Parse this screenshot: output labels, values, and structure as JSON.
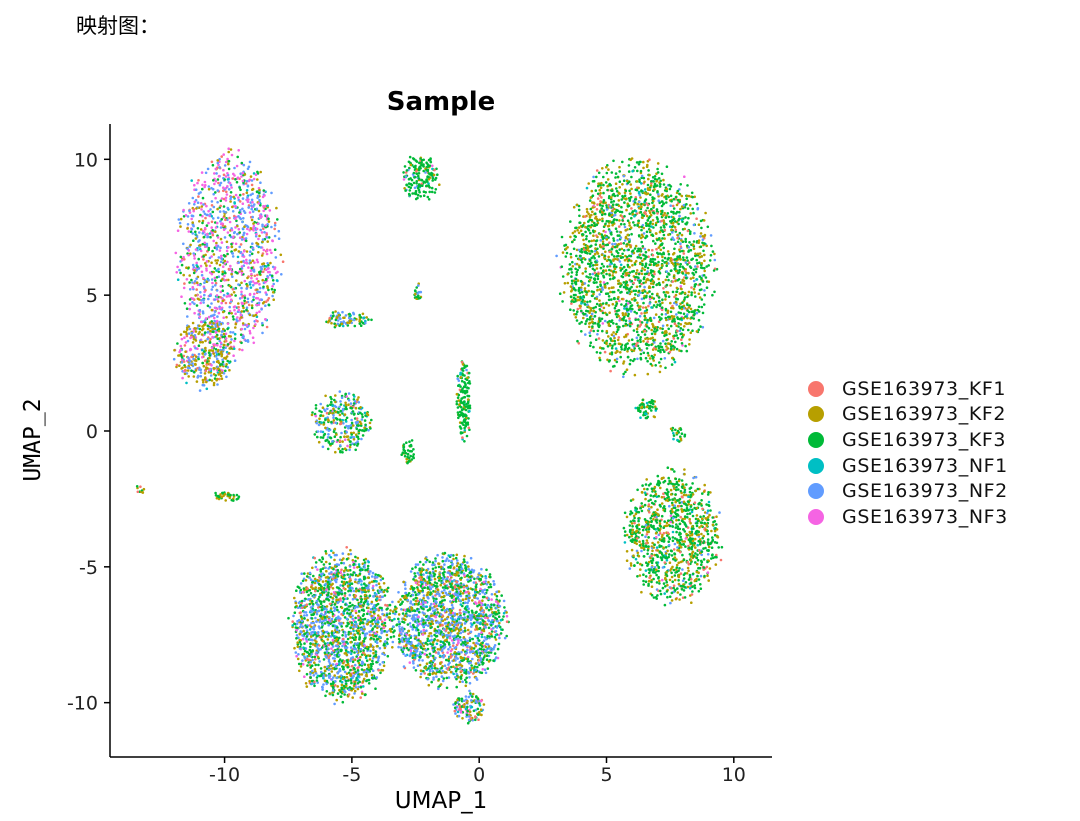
{
  "caption": "映射图：",
  "chart_data": {
    "type": "scatter",
    "title": "Sample",
    "xlabel": "UMAP_1",
    "ylabel": "UMAP_2",
    "xlim": [
      -14.5,
      11.5
    ],
    "ylim": [
      -12,
      11.3
    ],
    "xticks": [
      -10,
      -5,
      0,
      5,
      10
    ],
    "yticks": [
      -10,
      -5,
      0,
      5,
      10
    ],
    "grid": false,
    "legend_position": "right",
    "series": [
      {
        "name": "GSE163973_KF1",
        "color": "#F8766D"
      },
      {
        "name": "GSE163973_KF2",
        "color": "#B79F00"
      },
      {
        "name": "GSE163973_KF3",
        "color": "#00BA38"
      },
      {
        "name": "GSE163973_NF1",
        "color": "#00BFC4"
      },
      {
        "name": "GSE163973_NF2",
        "color": "#619CFF"
      },
      {
        "name": "GSE163973_NF3",
        "color": "#F564E3"
      }
    ],
    "clusters": [
      {
        "name": "left-upper",
        "cx": -9.8,
        "cy": 6.5,
        "rx": 1.9,
        "ry": 3.5,
        "n": 1200,
        "weights": [
          0.06,
          0.14,
          0.16,
          0.04,
          0.32,
          0.28
        ]
      },
      {
        "name": "left-lower",
        "cx": -10.8,
        "cy": 2.8,
        "rx": 1.1,
        "ry": 1.2,
        "n": 350,
        "weights": [
          0.06,
          0.4,
          0.14,
          0.04,
          0.26,
          0.1
        ]
      },
      {
        "name": "top-small",
        "cx": -2.3,
        "cy": 9.3,
        "rx": 0.7,
        "ry": 0.8,
        "n": 170,
        "weights": [
          0.04,
          0.08,
          0.72,
          0.04,
          0.1,
          0.02
        ]
      },
      {
        "name": "right-upper",
        "cx": 6.2,
        "cy": 6.0,
        "rx": 2.8,
        "ry": 3.7,
        "n": 2200,
        "weights": [
          0.06,
          0.3,
          0.55,
          0.02,
          0.06,
          0.01
        ]
      },
      {
        "name": "right-lower",
        "cx": 7.6,
        "cy": -3.9,
        "rx": 1.8,
        "ry": 2.3,
        "n": 1000,
        "weights": [
          0.05,
          0.28,
          0.6,
          0.02,
          0.04,
          0.01
        ]
      },
      {
        "name": "center-left",
        "cx": -5.4,
        "cy": 0.3,
        "rx": 1.1,
        "ry": 1.1,
        "n": 300,
        "weights": [
          0.04,
          0.22,
          0.44,
          0.04,
          0.22,
          0.04
        ]
      },
      {
        "name": "center-strip",
        "cx": -0.6,
        "cy": 1.1,
        "rx": 0.28,
        "ry": 1.4,
        "n": 160,
        "weights": [
          0.03,
          0.07,
          0.84,
          0.03,
          0.03,
          0.0
        ]
      },
      {
        "name": "bottom-left",
        "cx": -5.4,
        "cy": -7.2,
        "rx": 1.9,
        "ry": 2.6,
        "n": 1700,
        "weights": [
          0.05,
          0.18,
          0.38,
          0.05,
          0.3,
          0.04
        ]
      },
      {
        "name": "bottom-right",
        "cx": -1.2,
        "cy": -7.0,
        "rx": 2.1,
        "ry": 2.3,
        "n": 1700,
        "weights": [
          0.05,
          0.2,
          0.34,
          0.04,
          0.33,
          0.04
        ]
      },
      {
        "name": "bottom-tail",
        "cx": -0.4,
        "cy": -10.2,
        "rx": 0.6,
        "ry": 0.6,
        "n": 120,
        "weights": [
          0.1,
          0.2,
          0.3,
          0.05,
          0.3,
          0.05
        ]
      },
      {
        "name": "small-a",
        "cx": -5.2,
        "cy": 4.1,
        "rx": 0.9,
        "ry": 0.3,
        "n": 90,
        "weights": [
          0.05,
          0.3,
          0.3,
          0.05,
          0.3,
          0.0
        ]
      },
      {
        "name": "small-b",
        "cx": -2.4,
        "cy": 5.1,
        "rx": 0.15,
        "ry": 0.3,
        "n": 20,
        "weights": [
          0.0,
          0.2,
          0.6,
          0.0,
          0.2,
          0.0
        ]
      },
      {
        "name": "small-c",
        "cx": -2.8,
        "cy": -0.8,
        "rx": 0.25,
        "ry": 0.5,
        "n": 40,
        "weights": [
          0.0,
          0.2,
          0.8,
          0.0,
          0.0,
          0.0
        ]
      },
      {
        "name": "small-d",
        "cx": 6.6,
        "cy": 0.8,
        "rx": 0.4,
        "ry": 0.4,
        "n": 60,
        "weights": [
          0.05,
          0.25,
          0.6,
          0.1,
          0.0,
          0.0
        ]
      },
      {
        "name": "small-e",
        "cx": 7.8,
        "cy": -0.1,
        "rx": 0.3,
        "ry": 0.3,
        "n": 25,
        "weights": [
          0.0,
          0.2,
          0.6,
          0.2,
          0.0,
          0.0
        ]
      },
      {
        "name": "small-f",
        "cx": -9.9,
        "cy": -2.4,
        "rx": 0.5,
        "ry": 0.2,
        "n": 35,
        "weights": [
          0.0,
          0.3,
          0.7,
          0.0,
          0.0,
          0.0
        ]
      },
      {
        "name": "small-g",
        "cx": -13.3,
        "cy": -2.2,
        "rx": 0.2,
        "ry": 0.2,
        "n": 12,
        "weights": [
          0.2,
          0.5,
          0.3,
          0.0,
          0.0,
          0.0
        ]
      }
    ]
  }
}
